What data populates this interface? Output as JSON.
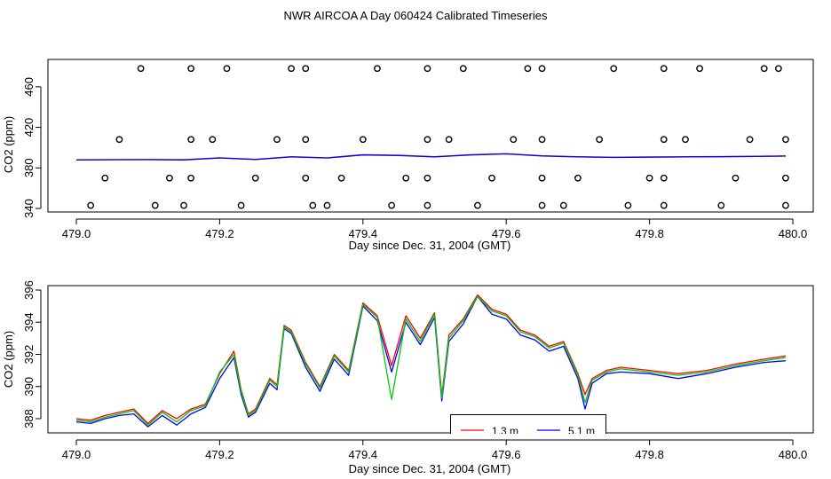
{
  "title": "NWR AIRCOA A  Day 060424  Calibrated Timeseries",
  "colors": {
    "red": "#ff0000",
    "blue": "#0000ff",
    "green": "#00cc00"
  },
  "chart_data": [
    {
      "type": "line",
      "xlabel": "Day since Dec. 31, 2004 (GMT)",
      "ylabel": "CO2 (ppm)",
      "xlim": [
        479.0,
        480.0
      ],
      "ylim": [
        340,
        480
      ],
      "x_ticks": [
        "479.0",
        "479.2",
        "479.4",
        "479.6",
        "479.8",
        "480.0"
      ],
      "y_ticks": [
        "340",
        "380",
        "420",
        "460"
      ],
      "series": [
        {
          "color": "#ff0000",
          "x": [
            479.0,
            479.05,
            479.1,
            479.15,
            479.2,
            479.25,
            479.3,
            479.35,
            479.4,
            479.45,
            479.5,
            479.55,
            479.6,
            479.65,
            479.7,
            479.75,
            479.8,
            479.85,
            479.9,
            479.95,
            479.99
          ],
          "y": [
            388,
            388.2,
            388.3,
            388.1,
            390,
            388.5,
            391,
            390,
            393,
            392.5,
            391,
            393,
            394,
            392,
            391,
            390.5,
            390.8,
            391,
            391.2,
            391.5,
            391.8
          ]
        },
        {
          "color": "#0000ff",
          "x": [
            479.0,
            479.05,
            479.1,
            479.15,
            479.2,
            479.25,
            479.3,
            479.35,
            479.4,
            479.45,
            479.5,
            479.55,
            479.6,
            479.65,
            479.7,
            479.75,
            479.8,
            479.85,
            479.9,
            479.95,
            479.99
          ],
          "y": [
            387.8,
            388,
            388.1,
            387.9,
            389.8,
            388.3,
            390.8,
            389.8,
            392.8,
            392.2,
            390.8,
            392.8,
            393.8,
            391.8,
            390.8,
            390.3,
            390.6,
            390.8,
            391,
            391.3,
            391.6
          ]
        }
      ],
      "points": [
        {
          "x": 479.09,
          "y": 478
        },
        {
          "x": 479.16,
          "y": 478
        },
        {
          "x": 479.21,
          "y": 478
        },
        {
          "x": 479.3,
          "y": 478
        },
        {
          "x": 479.32,
          "y": 478
        },
        {
          "x": 479.42,
          "y": 478
        },
        {
          "x": 479.49,
          "y": 478
        },
        {
          "x": 479.54,
          "y": 478
        },
        {
          "x": 479.63,
          "y": 478
        },
        {
          "x": 479.65,
          "y": 478
        },
        {
          "x": 479.75,
          "y": 478
        },
        {
          "x": 479.82,
          "y": 478
        },
        {
          "x": 479.87,
          "y": 478
        },
        {
          "x": 479.96,
          "y": 478
        },
        {
          "x": 479.98,
          "y": 478
        },
        {
          "x": 479.06,
          "y": 408
        },
        {
          "x": 479.16,
          "y": 408
        },
        {
          "x": 479.19,
          "y": 408
        },
        {
          "x": 479.28,
          "y": 408
        },
        {
          "x": 479.32,
          "y": 408
        },
        {
          "x": 479.4,
          "y": 408
        },
        {
          "x": 479.49,
          "y": 408
        },
        {
          "x": 479.52,
          "y": 408
        },
        {
          "x": 479.61,
          "y": 408
        },
        {
          "x": 479.65,
          "y": 408
        },
        {
          "x": 479.73,
          "y": 408
        },
        {
          "x": 479.82,
          "y": 408
        },
        {
          "x": 479.85,
          "y": 408
        },
        {
          "x": 479.94,
          "y": 408
        },
        {
          "x": 479.99,
          "y": 408
        },
        {
          "x": 479.04,
          "y": 370
        },
        {
          "x": 479.13,
          "y": 370
        },
        {
          "x": 479.16,
          "y": 370
        },
        {
          "x": 479.25,
          "y": 370
        },
        {
          "x": 479.32,
          "y": 370
        },
        {
          "x": 479.37,
          "y": 370
        },
        {
          "x": 479.46,
          "y": 370
        },
        {
          "x": 479.49,
          "y": 370
        },
        {
          "x": 479.58,
          "y": 370
        },
        {
          "x": 479.65,
          "y": 370
        },
        {
          "x": 479.7,
          "y": 370
        },
        {
          "x": 479.8,
          "y": 370
        },
        {
          "x": 479.82,
          "y": 370
        },
        {
          "x": 479.92,
          "y": 370
        },
        {
          "x": 479.99,
          "y": 370
        },
        {
          "x": 479.02,
          "y": 343
        },
        {
          "x": 479.11,
          "y": 343
        },
        {
          "x": 479.15,
          "y": 343
        },
        {
          "x": 479.23,
          "y": 343
        },
        {
          "x": 479.33,
          "y": 343
        },
        {
          "x": 479.35,
          "y": 343
        },
        {
          "x": 479.44,
          "y": 343
        },
        {
          "x": 479.49,
          "y": 343
        },
        {
          "x": 479.56,
          "y": 343
        },
        {
          "x": 479.65,
          "y": 343
        },
        {
          "x": 479.68,
          "y": 343
        },
        {
          "x": 479.77,
          "y": 343
        },
        {
          "x": 479.82,
          "y": 343
        },
        {
          "x": 479.9,
          "y": 343
        },
        {
          "x": 479.99,
          "y": 343
        }
      ]
    },
    {
      "type": "line",
      "xlabel": "Day since Dec. 31, 2004 (GMT)",
      "ylabel": "CO2 (ppm)",
      "xlim": [
        479.0,
        480.0
      ],
      "ylim": [
        387.3,
        396.3
      ],
      "x_ticks": [
        "479.0",
        "479.2",
        "479.4",
        "479.6",
        "479.8",
        "480.0"
      ],
      "y_ticks": [
        "388",
        "390",
        "392",
        "394",
        "396"
      ],
      "legend": {
        "placement": "bottom-center",
        "entries": [
          "1.3 m",
          "5.1 m"
        ]
      },
      "series": [
        {
          "name": "1.3 m",
          "color": "#ff0000",
          "x": [
            479.0,
            479.02,
            479.04,
            479.06,
            479.08,
            479.1,
            479.12,
            479.14,
            479.16,
            479.18,
            479.2,
            479.22,
            479.23,
            479.24,
            479.25,
            479.27,
            479.28,
            479.29,
            479.3,
            479.32,
            479.34,
            479.36,
            479.38,
            479.4,
            479.42,
            479.44,
            479.46,
            479.48,
            479.5,
            479.51,
            479.52,
            479.54,
            479.56,
            479.58,
            479.6,
            479.62,
            479.64,
            479.66,
            479.68,
            479.7,
            479.71,
            479.72,
            479.74,
            479.76,
            479.8,
            479.84,
            479.88,
            479.92,
            479.96,
            479.99
          ],
          "y": [
            388,
            387.9,
            388.2,
            388.4,
            388.6,
            387.7,
            388.5,
            388.0,
            388.6,
            388.9,
            390.8,
            392.2,
            389.8,
            388.3,
            388.6,
            390.5,
            390.1,
            393.8,
            393.5,
            391.5,
            390.0,
            392.0,
            391.0,
            395.2,
            394.4,
            391.3,
            394.4,
            393.0,
            394.6,
            389.4,
            393.2,
            394.2,
            395.7,
            394.8,
            394.5,
            393.5,
            393.2,
            392.5,
            392.8,
            390.8,
            389.5,
            390.5,
            391.0,
            391.2,
            391.0,
            390.8,
            391.0,
            391.4,
            391.7,
            391.9
          ]
        },
        {
          "name": "5.1 m",
          "color": "#0000ff",
          "x": [
            479.0,
            479.02,
            479.04,
            479.06,
            479.08,
            479.1,
            479.12,
            479.14,
            479.16,
            479.18,
            479.2,
            479.22,
            479.23,
            479.24,
            479.25,
            479.27,
            479.28,
            479.29,
            479.3,
            479.32,
            479.34,
            479.36,
            479.38,
            479.4,
            479.42,
            479.44,
            479.46,
            479.48,
            479.5,
            479.51,
            479.52,
            479.54,
            479.56,
            479.58,
            479.6,
            479.62,
            479.64,
            479.66,
            479.68,
            479.7,
            479.71,
            479.72,
            479.74,
            479.76,
            479.8,
            479.84,
            479.88,
            479.92,
            479.96,
            479.99
          ],
          "y": [
            387.8,
            387.7,
            388.0,
            388.2,
            388.3,
            387.5,
            388.2,
            387.6,
            388.3,
            388.7,
            390.5,
            391.8,
            389.5,
            388.1,
            388.4,
            390.2,
            389.8,
            393.6,
            393.3,
            391.2,
            389.7,
            391.7,
            390.7,
            395.0,
            394.1,
            390.9,
            394.0,
            392.6,
            394.3,
            389.1,
            392.8,
            393.9,
            395.6,
            394.5,
            394.2,
            393.2,
            392.9,
            392.2,
            392.5,
            390.5,
            388.6,
            390.2,
            390.8,
            390.9,
            390.8,
            390.5,
            390.8,
            391.2,
            391.5,
            391.6
          ]
        },
        {
          "color": "#00cc00",
          "x": [
            479.0,
            479.02,
            479.04,
            479.06,
            479.08,
            479.1,
            479.12,
            479.14,
            479.16,
            479.18,
            479.2,
            479.22,
            479.23,
            479.24,
            479.25,
            479.27,
            479.28,
            479.29,
            479.3,
            479.32,
            479.34,
            479.36,
            479.38,
            479.4,
            479.42,
            479.44,
            479.46,
            479.48,
            479.5,
            479.51,
            479.52,
            479.54,
            479.56,
            479.58,
            479.6,
            479.62,
            479.64,
            479.66,
            479.68,
            479.7,
            479.71,
            479.72,
            479.74,
            479.76,
            479.8,
            479.84,
            479.88,
            479.92,
            479.96,
            479.99
          ],
          "y": [
            387.9,
            387.8,
            388.1,
            388.3,
            388.5,
            387.6,
            388.4,
            387.8,
            388.5,
            388.8,
            390.9,
            392.0,
            389.7,
            388.2,
            388.5,
            390.4,
            390.0,
            393.7,
            393.4,
            391.4,
            389.9,
            391.9,
            390.9,
            395.1,
            394.3,
            389.2,
            394.2,
            392.8,
            394.5,
            389.3,
            393.0,
            394.1,
            395.6,
            394.7,
            394.4,
            393.4,
            393.1,
            392.4,
            392.7,
            390.7,
            389.0,
            390.4,
            390.9,
            391.1,
            390.9,
            390.7,
            390.9,
            391.3,
            391.6,
            391.8
          ]
        }
      ]
    }
  ]
}
